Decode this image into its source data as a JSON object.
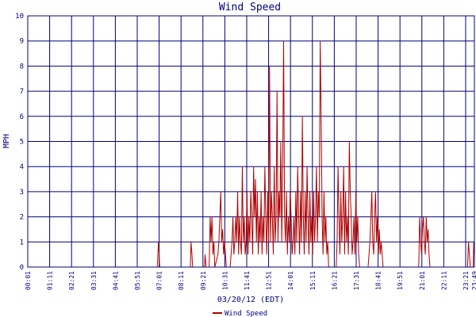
{
  "chart_data": {
    "type": "line",
    "title": "Wind Speed",
    "xlabel": "03/20/12 (EDT)",
    "ylabel": "MPH",
    "ylim": [
      0,
      10
    ],
    "yticks": [
      0,
      1,
      2,
      3,
      4,
      5,
      6,
      7,
      8,
      9,
      10
    ],
    "grid": true,
    "legend_position": "bottom-center",
    "xlim": [
      "00:01",
      "23:49"
    ],
    "xticks": [
      "00:01",
      "01:11",
      "02:21",
      "03:31",
      "04:41",
      "05:51",
      "07:01",
      "08:11",
      "09:21",
      "10:31",
      "11:41",
      "12:51",
      "14:01",
      "15:11",
      "16:21",
      "17:31",
      "18:41",
      "19:51",
      "21:01",
      "22:11",
      "23:21",
      "23:49"
    ],
    "series": [
      {
        "name": "Wind Speed",
        "color": "#b00000",
        "points": [
          [
            "00:01",
            0
          ],
          [
            "06:55",
            0
          ],
          [
            "06:59",
            1
          ],
          [
            "07:01",
            0.5
          ],
          [
            "07:03",
            0
          ],
          [
            "08:41",
            0
          ],
          [
            "08:43",
            1
          ],
          [
            "08:46",
            0.5
          ],
          [
            "08:48",
            0
          ],
          [
            "09:26",
            0
          ],
          [
            "09:28",
            0.5
          ],
          [
            "09:31",
            0
          ],
          [
            "09:41",
            0
          ],
          [
            "09:44",
            2
          ],
          [
            "09:47",
            1
          ],
          [
            "09:50",
            2
          ],
          [
            "09:53",
            0.5
          ],
          [
            "09:56",
            1
          ],
          [
            "09:59",
            0
          ],
          [
            "10:09",
            0.5
          ],
          [
            "10:12",
            1
          ],
          [
            "10:15",
            2
          ],
          [
            "10:18",
            3
          ],
          [
            "10:21",
            1
          ],
          [
            "10:24",
            1.5
          ],
          [
            "10:27",
            0.5
          ],
          [
            "10:30",
            1
          ],
          [
            "10:33",
            0.5
          ],
          [
            "10:36",
            0
          ],
          [
            "10:48",
            0
          ],
          [
            "10:51",
            0.5
          ],
          [
            "10:54",
            1
          ],
          [
            "10:57",
            2
          ],
          [
            "11:00",
            0.5
          ],
          [
            "11:03",
            1
          ],
          [
            "11:06",
            2
          ],
          [
            "11:09",
            1
          ],
          [
            "11:12",
            3
          ],
          [
            "11:15",
            0.5
          ],
          [
            "11:18",
            2
          ],
          [
            "11:21",
            1
          ],
          [
            "11:24",
            0.5
          ],
          [
            "11:27",
            4
          ],
          [
            "11:30",
            1
          ],
          [
            "11:33",
            2
          ],
          [
            "11:36",
            0.5
          ],
          [
            "11:39",
            1
          ],
          [
            "11:42",
            3
          ],
          [
            "11:45",
            0.5
          ],
          [
            "11:48",
            2
          ],
          [
            "11:51",
            1
          ],
          [
            "11:54",
            3
          ],
          [
            "11:57",
            2
          ],
          [
            "12:00",
            0.5
          ],
          [
            "12:03",
            4
          ],
          [
            "12:06",
            2
          ],
          [
            "12:09",
            3.5
          ],
          [
            "12:12",
            1
          ],
          [
            "12:15",
            3
          ],
          [
            "12:18",
            0.5
          ],
          [
            "12:21",
            2
          ],
          [
            "12:24",
            1
          ],
          [
            "12:27",
            3
          ],
          [
            "12:30",
            0.5
          ],
          [
            "12:33",
            2
          ],
          [
            "12:36",
            1
          ],
          [
            "12:39",
            4
          ],
          [
            "12:42",
            2
          ],
          [
            "12:45",
            0.5
          ],
          [
            "12:48",
            3
          ],
          [
            "12:51",
            1
          ],
          [
            "12:54",
            8
          ],
          [
            "12:57",
            1
          ],
          [
            "13:00",
            3
          ],
          [
            "13:03",
            2
          ],
          [
            "13:06",
            0.5
          ],
          [
            "13:09",
            4
          ],
          [
            "13:12",
            1
          ],
          [
            "13:15",
            2
          ],
          [
            "13:18",
            7
          ],
          [
            "13:21",
            1
          ],
          [
            "13:24",
            3
          ],
          [
            "13:27",
            2
          ],
          [
            "13:30",
            5
          ],
          [
            "13:33",
            1
          ],
          [
            "13:36",
            4
          ],
          [
            "13:39",
            9
          ],
          [
            "13:42",
            2
          ],
          [
            "13:45",
            1
          ],
          [
            "13:48",
            3
          ],
          [
            "13:51",
            0.5
          ],
          [
            "13:54",
            2
          ],
          [
            "13:57",
            1
          ],
          [
            "14:00",
            3
          ],
          [
            "14:03",
            2
          ],
          [
            "14:06",
            0.5
          ],
          [
            "14:09",
            1
          ],
          [
            "14:12",
            2
          ],
          [
            "14:15",
            0.5
          ],
          [
            "14:18",
            3
          ],
          [
            "14:21",
            1
          ],
          [
            "14:24",
            4
          ],
          [
            "14:27",
            2
          ],
          [
            "14:30",
            0.5
          ],
          [
            "14:33",
            3
          ],
          [
            "14:36",
            1
          ],
          [
            "14:39",
            6
          ],
          [
            "14:42",
            2
          ],
          [
            "14:45",
            0.5
          ],
          [
            "14:48",
            3
          ],
          [
            "14:51",
            1
          ],
          [
            "14:54",
            4
          ],
          [
            "14:57",
            2
          ],
          [
            "15:00",
            0.5
          ],
          [
            "15:03",
            3
          ],
          [
            "15:06",
            1
          ],
          [
            "15:09",
            2
          ],
          [
            "15:12",
            0.5
          ],
          [
            "15:15",
            3
          ],
          [
            "15:18",
            1
          ],
          [
            "15:21",
            2
          ],
          [
            "15:24",
            4
          ],
          [
            "15:27",
            1
          ],
          [
            "15:30",
            3
          ],
          [
            "15:33",
            2
          ],
          [
            "15:36",
            9
          ],
          [
            "15:39",
            6
          ],
          [
            "15:42",
            2
          ],
          [
            "15:45",
            0.5
          ],
          [
            "15:48",
            3
          ],
          [
            "15:51",
            1
          ],
          [
            "15:54",
            2
          ],
          [
            "15:57",
            0.5
          ],
          [
            "16:00",
            1
          ],
          [
            "16:03",
            0
          ],
          [
            "16:27",
            0
          ],
          [
            "16:30",
            1
          ],
          [
            "16:33",
            4
          ],
          [
            "16:36",
            2
          ],
          [
            "16:39",
            0.5
          ],
          [
            "16:42",
            3
          ],
          [
            "16:45",
            1
          ],
          [
            "16:48",
            2
          ],
          [
            "16:51",
            4
          ],
          [
            "16:54",
            0.5
          ],
          [
            "16:57",
            3
          ],
          [
            "17:00",
            1
          ],
          [
            "17:03",
            2
          ],
          [
            "17:06",
            0.5
          ],
          [
            "17:09",
            5
          ],
          [
            "17:12",
            3
          ],
          [
            "17:15",
            2
          ],
          [
            "17:18",
            0.5
          ],
          [
            "17:21",
            1
          ],
          [
            "17:24",
            2
          ],
          [
            "17:27",
            0.5
          ],
          [
            "17:30",
            3
          ],
          [
            "17:33",
            1
          ],
          [
            "17:36",
            2
          ],
          [
            "17:39",
            0.5
          ],
          [
            "17:42",
            0
          ],
          [
            "18:09",
            0
          ],
          [
            "18:12",
            0.5
          ],
          [
            "18:15",
            1
          ],
          [
            "18:18",
            2
          ],
          [
            "18:21",
            3
          ],
          [
            "18:24",
            1
          ],
          [
            "18:27",
            0.5
          ],
          [
            "18:30",
            2
          ],
          [
            "18:33",
            3
          ],
          [
            "18:36",
            1
          ],
          [
            "18:39",
            2
          ],
          [
            "18:42",
            0.5
          ],
          [
            "18:45",
            1.5
          ],
          [
            "18:48",
            0.5
          ],
          [
            "18:51",
            1
          ],
          [
            "18:54",
            0.5
          ],
          [
            "18:57",
            0
          ],
          [
            "20:51",
            0
          ],
          [
            "20:54",
            2
          ],
          [
            "20:57",
            1
          ],
          [
            "21:00",
            0.5
          ],
          [
            "21:03",
            1.5
          ],
          [
            "21:06",
            2
          ],
          [
            "21:09",
            1
          ],
          [
            "21:12",
            0.5
          ],
          [
            "21:15",
            2
          ],
          [
            "21:18",
            1
          ],
          [
            "21:21",
            1.5
          ],
          [
            "21:24",
            0.5
          ],
          [
            "21:27",
            0
          ],
          [
            "23:27",
            0
          ],
          [
            "23:30",
            1
          ],
          [
            "23:33",
            0.5
          ],
          [
            "23:36",
            0
          ],
          [
            "23:45",
            0
          ],
          [
            "23:47",
            1
          ],
          [
            "23:49",
            0.5
          ]
        ]
      }
    ]
  }
}
